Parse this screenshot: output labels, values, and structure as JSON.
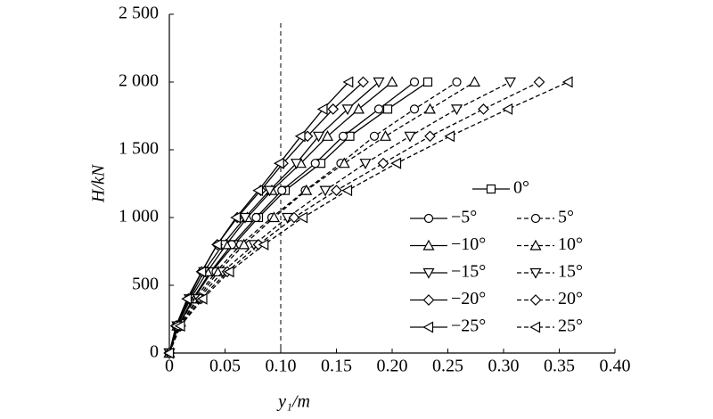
{
  "chart_data": {
    "type": "line",
    "x_label": "y₁/m",
    "y_label": "H/kN",
    "xlim": [
      0,
      0.4
    ],
    "xticks": [
      0,
      0.05,
      {
        "value": 0.1,
        "label": "0.10"
      },
      0.15,
      {
        "value": 0.2,
        "label": "0.20"
      },
      0.25,
      {
        "value": 0.3,
        "label": "0.30"
      },
      0.35,
      {
        "value": 0.4,
        "label": "0.40"
      }
    ],
    "ylim": [
      0,
      2500
    ],
    "yticks": [
      0,
      500,
      {
        "value": 1000,
        "label": "1 000"
      },
      {
        "value": 1500,
        "label": "1 500"
      },
      {
        "value": 2000,
        "label": "2 000"
      },
      {
        "value": 2500,
        "label": "2 500"
      }
    ],
    "reference_x": 0.1,
    "series": [
      {
        "name": "0°",
        "color": "#000",
        "marker": "square",
        "line_style": "solid",
        "x": [
          0,
          0.008,
          0.022,
          0.038,
          0.058,
          0.08,
          0.104,
          0.136,
          0.162,
          0.196,
          0.232
        ],
        "values": [
          0,
          200,
          400,
          600,
          800,
          1000,
          1200,
          1400,
          1600,
          1800,
          2000
        ]
      },
      {
        "name": "−5°",
        "color": "#000",
        "marker": "circle",
        "line_style": "solid",
        "x": [
          0,
          0.008,
          0.021,
          0.037,
          0.056,
          0.078,
          0.101,
          0.131,
          0.156,
          0.188,
          0.22
        ],
        "values": [
          0,
          200,
          400,
          600,
          800,
          1000,
          1200,
          1400,
          1600,
          1800,
          2000
        ]
      },
      {
        "name": "5°",
        "color": "#000",
        "marker": "circle",
        "line_style": "dashed",
        "x": [
          0,
          0.008,
          0.023,
          0.042,
          0.064,
          0.092,
          0.122,
          0.154,
          0.184,
          0.22,
          0.258
        ],
        "values": [
          0,
          200,
          400,
          600,
          800,
          1000,
          1200,
          1400,
          1600,
          1800,
          2000
        ]
      },
      {
        "name": "−10°",
        "color": "#000",
        "marker": "triangle-up",
        "line_style": "solid",
        "x": [
          0,
          0.007,
          0.019,
          0.034,
          0.051,
          0.07,
          0.092,
          0.118,
          0.142,
          0.17,
          0.2
        ],
        "values": [
          0,
          200,
          400,
          600,
          800,
          1000,
          1200,
          1400,
          1600,
          1800,
          2000
        ]
      },
      {
        "name": "10°",
        "color": "#000",
        "marker": "triangle-up",
        "line_style": "dashed",
        "x": [
          0,
          0.009,
          0.025,
          0.044,
          0.067,
          0.094,
          0.123,
          0.157,
          0.194,
          0.234,
          0.274
        ],
        "values": [
          0,
          200,
          400,
          600,
          800,
          1000,
          1200,
          1400,
          1600,
          1800,
          2000
        ]
      },
      {
        "name": "−15°",
        "color": "#000",
        "marker": "triangle-down",
        "line_style": "solid",
        "x": [
          0,
          0.007,
          0.018,
          0.031,
          0.048,
          0.068,
          0.09,
          0.114,
          0.134,
          0.16,
          0.188
        ],
        "values": [
          0,
          200,
          400,
          600,
          800,
          1000,
          1200,
          1400,
          1600,
          1800,
          2000
        ]
      },
      {
        "name": "15°",
        "color": "#000",
        "marker": "triangle-down",
        "line_style": "dashed",
        "x": [
          0,
          0.009,
          0.026,
          0.048,
          0.076,
          0.106,
          0.14,
          0.176,
          0.216,
          0.258,
          0.306
        ],
        "values": [
          0,
          200,
          400,
          600,
          800,
          1000,
          1200,
          1400,
          1600,
          1800,
          2000
        ]
      },
      {
        "name": "−20°",
        "color": "#000",
        "marker": "diamond",
        "line_style": "solid",
        "x": [
          0,
          0.006,
          0.017,
          0.029,
          0.043,
          0.061,
          0.082,
          0.102,
          0.124,
          0.147,
          0.174
        ],
        "values": [
          0,
          200,
          400,
          600,
          800,
          1000,
          1200,
          1400,
          1600,
          1800,
          2000
        ]
      },
      {
        "name": "20°",
        "color": "#000",
        "marker": "diamond",
        "line_style": "dashed",
        "x": [
          0,
          0.01,
          0.028,
          0.052,
          0.08,
          0.112,
          0.15,
          0.192,
          0.234,
          0.282,
          0.332
        ],
        "values": [
          0,
          200,
          400,
          600,
          800,
          1000,
          1200,
          1400,
          1600,
          1800,
          2000
        ]
      },
      {
        "name": "−25°",
        "color": "#000",
        "marker": "triangle-left",
        "line_style": "solid",
        "x": [
          0,
          0.006,
          0.016,
          0.029,
          0.043,
          0.06,
          0.08,
          0.099,
          0.118,
          0.138,
          0.161
        ],
        "values": [
          0,
          200,
          400,
          600,
          800,
          1000,
          1200,
          1400,
          1600,
          1800,
          2000
        ]
      },
      {
        "name": "25°",
        "color": "#000",
        "marker": "triangle-left",
        "line_style": "dashed",
        "x": [
          0,
          0.01,
          0.03,
          0.054,
          0.085,
          0.12,
          0.16,
          0.204,
          0.252,
          0.304,
          0.358
        ],
        "values": [
          0,
          200,
          400,
          600,
          800,
          1000,
          1200,
          1400,
          1600,
          1800,
          2000
        ]
      }
    ]
  }
}
